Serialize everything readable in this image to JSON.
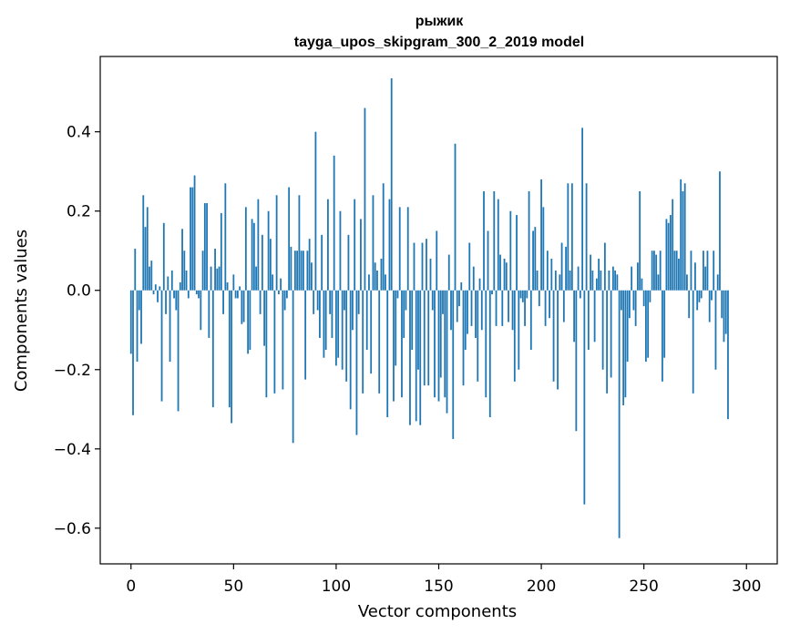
{
  "chart_data": {
    "type": "bar",
    "title": "рыжик",
    "subtitle": "tayga_upos_skipgram_300_2_2019 model",
    "xlabel": "Vector components",
    "ylabel": "Components values",
    "xlim": [
      -15,
      315
    ],
    "ylim": [
      -0.69,
      0.59
    ],
    "xticks": [
      0,
      50,
      100,
      150,
      200,
      250,
      300
    ],
    "xtick_labels": [
      "0",
      "50",
      "100",
      "150",
      "200",
      "250",
      "300"
    ],
    "yticks": [
      -0.6,
      -0.4,
      -0.2,
      0.0,
      0.2,
      0.4
    ],
    "ytick_labels": [
      "−0.6",
      "−0.4",
      "−0.2",
      "0.0",
      "0.2",
      "0.4"
    ],
    "bar_color": "#1f77b4",
    "grid": false,
    "values": [
      -0.16,
      -0.315,
      0.105,
      -0.18,
      -0.05,
      -0.135,
      0.24,
      0.16,
      0.21,
      0.06,
      0.075,
      -0.01,
      0.015,
      -0.03,
      0.01,
      -0.28,
      0.17,
      -0.06,
      0.035,
      -0.18,
      0.05,
      -0.02,
      -0.05,
      -0.305,
      0.02,
      0.155,
      0.1,
      0.05,
      -0.02,
      0.26,
      0.26,
      0.29,
      -0.01,
      -0.02,
      -0.1,
      0.1,
      0.22,
      0.22,
      -0.12,
      0.06,
      -0.295,
      0.105,
      0.055,
      0.06,
      0.195,
      -0.06,
      0.27,
      0.02,
      -0.295,
      -0.335,
      0.04,
      -0.02,
      -0.02,
      0.01,
      -0.085,
      -0.08,
      0.21,
      -0.16,
      -0.15,
      0.18,
      0.17,
      0.06,
      0.23,
      -0.06,
      0.14,
      -0.14,
      -0.27,
      0.2,
      0.13,
      0.04,
      -0.26,
      0.24,
      -0.01,
      0.03,
      -0.25,
      -0.05,
      -0.02,
      0.26,
      0.11,
      -0.385,
      0.1,
      0.1,
      0.24,
      0.1,
      0.1,
      -0.225,
      0.1,
      0.13,
      0.07,
      -0.06,
      0.4,
      -0.05,
      -0.12,
      0.14,
      -0.17,
      -0.15,
      0.23,
      -0.06,
      -0.12,
      0.34,
      -0.19,
      -0.17,
      0.2,
      -0.2,
      -0.05,
      -0.23,
      0.14,
      -0.3,
      -0.1,
      0.23,
      -0.365,
      -0.06,
      0.18,
      -0.26,
      0.46,
      -0.15,
      0.04,
      -0.21,
      0.24,
      0.07,
      0.05,
      -0.26,
      0.08,
      0.27,
      0.04,
      -0.32,
      0.23,
      0.535,
      -0.28,
      -0.19,
      -0.02,
      0.21,
      -0.27,
      -0.12,
      -0.05,
      0.21,
      -0.34,
      -0.15,
      0.12,
      -0.33,
      -0.2,
      -0.34,
      0.12,
      -0.24,
      0.13,
      -0.24,
      0.08,
      -0.05,
      -0.27,
      0.15,
      -0.28,
      -0.22,
      -0.06,
      -0.27,
      -0.31,
      0.09,
      -0.1,
      -0.375,
      0.37,
      -0.08,
      -0.04,
      0.02,
      -0.24,
      -0.15,
      -0.11,
      0.12,
      -0.09,
      0.06,
      -0.12,
      -0.23,
      0.03,
      -0.1,
      0.25,
      -0.27,
      0.15,
      -0.32,
      -0.01,
      0.25,
      -0.09,
      0.23,
      0.09,
      -0.09,
      0.08,
      0.07,
      -0.08,
      0.2,
      -0.1,
      -0.23,
      0.19,
      -0.2,
      -0.02,
      -0.03,
      -0.09,
      -0.02,
      0.25,
      -0.15,
      0.15,
      0.16,
      0.05,
      -0.04,
      0.28,
      0.21,
      -0.09,
      0.1,
      -0.07,
      0.08,
      -0.23,
      0.05,
      -0.25,
      0.04,
      0.12,
      -0.08,
      0.11,
      0.27,
      0.05,
      0.27,
      -0.13,
      -0.355,
      0.06,
      -0.02,
      0.41,
      -0.54,
      0.27,
      -0.15,
      0.09,
      0.05,
      -0.13,
      0.03,
      0.08,
      0.05,
      -0.2,
      0.12,
      -0.26,
      0.05,
      -0.22,
      0.06,
      0.05,
      0.04,
      -0.625,
      -0.05,
      -0.29,
      -0.27,
      -0.18,
      -0.07,
      0.06,
      -0.05,
      -0.09,
      0.07,
      0.25,
      0.03,
      -0.04,
      -0.18,
      -0.17,
      -0.03,
      0.1,
      0.1,
      0.09,
      0.04,
      0.1,
      -0.23,
      -0.17,
      0.18,
      0.17,
      0.19,
      0.23,
      0.1,
      0.1,
      0.08,
      0.28,
      0.25,
      0.27,
      0.04,
      -0.07,
      0.1,
      -0.26,
      0.07,
      -0.05,
      -0.03,
      -0.02,
      0.1,
      0.06,
      0.1,
      -0.08,
      -0.025,
      0.1,
      -0.2,
      0.04,
      0.3,
      -0.07,
      -0.13,
      -0.11,
      -0.325
    ]
  }
}
